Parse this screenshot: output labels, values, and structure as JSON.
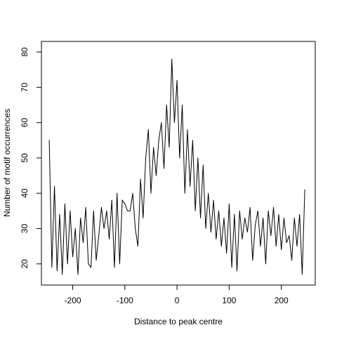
{
  "chart_data": {
    "type": "line",
    "title": "",
    "xlabel": "Distance to peak centre",
    "ylabel": "Number of motif occurrences",
    "xlim": [
      -260,
      265
    ],
    "ylim": [
      14,
      83
    ],
    "xticks": [
      -200,
      -100,
      0,
      100,
      200
    ],
    "yticks": [
      20,
      30,
      40,
      50,
      60,
      70,
      80
    ],
    "grid": false,
    "legend": "none",
    "color": "#000000",
    "series": [
      {
        "x": [
          -245,
          -240,
          -235,
          -230,
          -225,
          -220,
          -215,
          -210,
          -205,
          -200,
          -195,
          -190,
          -185,
          -180,
          -175,
          -170,
          -165,
          -160,
          -155,
          -150,
          -145,
          -140,
          -135,
          -130,
          -125,
          -120,
          -115,
          -110,
          -105,
          -100,
          -95,
          -90,
          -85,
          -80,
          -75,
          -70,
          -65,
          -60,
          -55,
          -50,
          -45,
          -40,
          -35,
          -30,
          -25,
          -20,
          -15,
          -10,
          -5,
          0,
          5,
          10,
          15,
          20,
          25,
          30,
          35,
          40,
          45,
          50,
          55,
          60,
          65,
          70,
          75,
          80,
          85,
          90,
          95,
          100,
          105,
          110,
          115,
          120,
          125,
          130,
          135,
          140,
          145,
          150,
          155,
          160,
          165,
          170,
          175,
          180,
          185,
          190,
          195,
          200,
          205,
          210,
          215,
          220,
          225,
          230,
          235,
          240,
          245
        ],
        "y": [
          55,
          19,
          42,
          18,
          34,
          17,
          37,
          20,
          35,
          22,
          30,
          17,
          33,
          26,
          36,
          20,
          19,
          35,
          21,
          28,
          36,
          30,
          35,
          27,
          38,
          19,
          40,
          20,
          38,
          37,
          35,
          35,
          40,
          30,
          25,
          44,
          33,
          50,
          58,
          40,
          53,
          45,
          55,
          60,
          47,
          65,
          53,
          78,
          60,
          72,
          50,
          65,
          40,
          58,
          42,
          55,
          35,
          50,
          33,
          48,
          30,
          40,
          29,
          38,
          27,
          35,
          25,
          33,
          23,
          37,
          19,
          34,
          18,
          35,
          27,
          33,
          29,
          36,
          21,
          31,
          35,
          25,
          33,
          20,
          35,
          28,
          36,
          25,
          34,
          24,
          33,
          26,
          28,
          21,
          33,
          25,
          34,
          17,
          41
        ]
      }
    ]
  }
}
